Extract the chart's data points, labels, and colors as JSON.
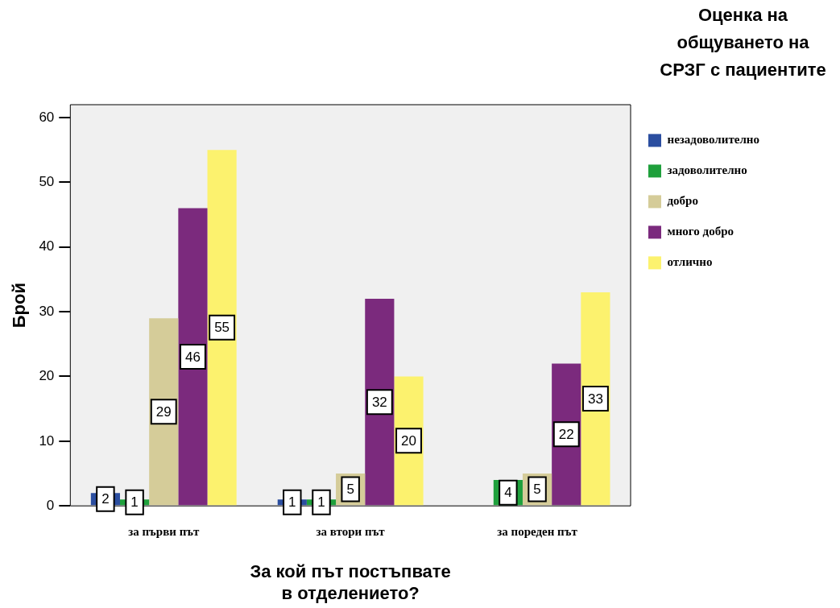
{
  "chart_data": {
    "type": "bar",
    "xlabel": "За кой път постъпвате в отделението?",
    "ylabel": "Брой",
    "legend_title": "Оценка на общуването на СРЗГ с пациентите",
    "categories": [
      "за първи път",
      "за втори път",
      "за пореден път"
    ],
    "series": [
      {
        "name": "незадоволително",
        "color": "#2b4ea0",
        "values": [
          2,
          1,
          null
        ]
      },
      {
        "name": "задоволително",
        "color": "#1fa03c",
        "values": [
          1,
          1,
          4
        ]
      },
      {
        "name": "добро",
        "color": "#d5cc99",
        "values": [
          29,
          5,
          5
        ]
      },
      {
        "name": "много добро",
        "color": "#7b2a7d",
        "values": [
          46,
          32,
          22
        ]
      },
      {
        "name": "отлично",
        "color": "#fcf26e",
        "values": [
          55,
          20,
          33
        ]
      }
    ],
    "ylim": [
      0,
      62
    ],
    "yticks": [
      0,
      10,
      20,
      30,
      40,
      50,
      60
    ],
    "grid": false,
    "legend": "right",
    "data_labels": true
  }
}
